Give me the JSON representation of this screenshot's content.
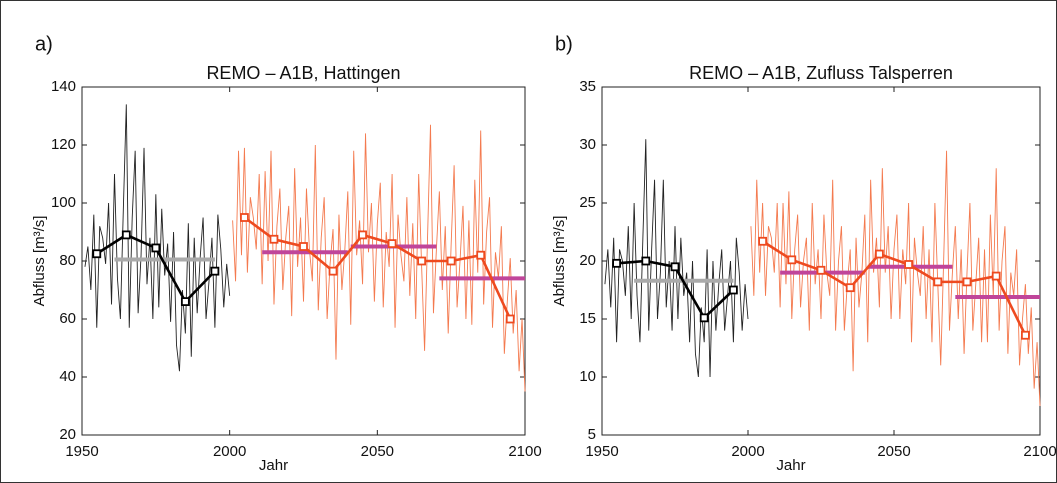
{
  "chart_data": [
    {
      "type": "line",
      "panel_label": "a)",
      "title": "REMO – A1B, Hattingen",
      "xlabel": "Jahr",
      "ylabel": "Abfluss [m³/s]",
      "xlim": [
        1950,
        2100
      ],
      "xticks": [
        1950,
        2000,
        2050,
        2100
      ],
      "ylim": [
        20,
        140
      ],
      "yticks": [
        20,
        40,
        60,
        80,
        100,
        120,
        140
      ],
      "annual": [
        {
          "color": "#222222",
          "x": [
            1951,
            1952,
            1953,
            1954,
            1955,
            1956,
            1957,
            1958,
            1959,
            1960,
            1961,
            1962,
            1963,
            1964,
            1965,
            1966,
            1967,
            1968,
            1969,
            1970,
            1971,
            1972,
            1973,
            1974,
            1975,
            1976,
            1977,
            1978,
            1979,
            1980,
            1981,
            1982,
            1983,
            1984,
            1985,
            1986,
            1987,
            1988,
            1989,
            1990,
            1991,
            1992,
            1993,
            1994,
            1995,
            1996,
            1997,
            1998,
            1999,
            2000
          ],
          "values": [
            78,
            85,
            70,
            96,
            57,
            92,
            88,
            79,
            100,
            65,
            110,
            74,
            60,
            98,
            134,
            57,
            95,
            118,
            62,
            82,
            119,
            72,
            88,
            60,
            103,
            64,
            98,
            75,
            86,
            59,
            90,
            51,
            42,
            70,
            55,
            93,
            47,
            88,
            62,
            81,
            95,
            60,
            73,
            88,
            57,
            96,
            84,
            64,
            79,
            68
          ]
        },
        {
          "color": "#f47a4f",
          "x": [
            2001,
            2002,
            2003,
            2004,
            2005,
            2006,
            2007,
            2008,
            2009,
            2010,
            2011,
            2012,
            2013,
            2014,
            2015,
            2016,
            2017,
            2018,
            2019,
            2020,
            2021,
            2022,
            2023,
            2024,
            2025,
            2026,
            2027,
            2028,
            2029,
            2030,
            2031,
            2032,
            2033,
            2034,
            2035,
            2036,
            2037,
            2038,
            2039,
            2040,
            2041,
            2042,
            2043,
            2044,
            2045,
            2046,
            2047,
            2048,
            2049,
            2050,
            2051,
            2052,
            2053,
            2054,
            2055,
            2056,
            2057,
            2058,
            2059,
            2060,
            2061,
            2062,
            2063,
            2064,
            2065,
            2066,
            2067,
            2068,
            2069,
            2070,
            2071,
            2072,
            2073,
            2074,
            2075,
            2076,
            2077,
            2078,
            2079,
            2080,
            2081,
            2082,
            2083,
            2084,
            2085,
            2086,
            2087,
            2088,
            2089,
            2090,
            2091,
            2092,
            2093,
            2094,
            2095,
            2096,
            2097,
            2098,
            2099,
            2100
          ],
          "values": [
            94,
            73,
            118,
            82,
            119,
            76,
            102,
            95,
            84,
            110,
            72,
            111,
            80,
            118,
            65,
            92,
            105,
            70,
            88,
            99,
            61,
            112,
            78,
            95,
            66,
            105,
            84,
            73,
            120,
            63,
            88,
            102,
            60,
            79,
            91,
            46,
            96,
            70,
            84,
            104,
            58,
            118,
            82,
            94,
            72,
            124,
            83,
            100,
            66,
            93,
            107,
            64,
            90,
            78,
            110,
            57,
            96,
            82,
            73,
            102,
            68,
            93,
            60,
            110,
            78,
            49,
            88,
            127,
            62,
            84,
            104,
            70,
            92,
            55,
            86,
            113,
            64,
            80,
            99,
            60,
            94,
            58,
            108,
            76,
            125,
            65,
            90,
            102,
            57,
            83,
            74,
            92,
            48,
            66,
            81,
            55,
            70,
            42,
            60,
            35
          ]
        }
      ],
      "decadal": [
        {
          "color": "#000000",
          "x": [
            1955,
            1965,
            1975,
            1985,
            1995
          ],
          "values": [
            82.5,
            89,
            84.5,
            66,
            76.5
          ]
        },
        {
          "color": "#ee4a1f",
          "x": [
            2005,
            2015,
            2025,
            2035,
            2045,
            2055,
            2065,
            2075,
            2085,
            2095
          ],
          "values": [
            95,
            87.5,
            85,
            76.5,
            89,
            86,
            80,
            80,
            82,
            60
          ]
        }
      ],
      "periods": [
        {
          "color": "#aaaaaa",
          "x": [
            1961,
            1995
          ],
          "value": 80.5
        },
        {
          "color": "#c0459a",
          "x": [
            2011,
            2040
          ],
          "value": 83
        },
        {
          "color": "#c0459a",
          "x": [
            2041,
            2070
          ],
          "value": 85
        },
        {
          "color": "#c0459a",
          "x": [
            2071,
            2100
          ],
          "value": 74
        }
      ]
    },
    {
      "type": "line",
      "panel_label": "b)",
      "title": "REMO – A1B, Zufluss Talsperren",
      "xlabel": "Jahr",
      "ylabel": "Abfluss [m³/s]",
      "xlim": [
        1950,
        2100
      ],
      "xticks": [
        1950,
        2000,
        2050,
        2100
      ],
      "ylim": [
        5,
        35
      ],
      "yticks": [
        5,
        10,
        15,
        20,
        25,
        30,
        35
      ],
      "annual": [
        {
          "color": "#222222",
          "x": [
            1951,
            1952,
            1953,
            1954,
            1955,
            1956,
            1957,
            1958,
            1959,
            1960,
            1961,
            1962,
            1963,
            1964,
            1965,
            1966,
            1967,
            1968,
            1969,
            1970,
            1971,
            1972,
            1973,
            1974,
            1975,
            1976,
            1977,
            1978,
            1979,
            1980,
            1981,
            1982,
            1983,
            1984,
            1985,
            1986,
            1987,
            1988,
            1989,
            1990,
            1991,
            1992,
            1993,
            1994,
            1995,
            1996,
            1997,
            1998,
            1999,
            2000
          ],
          "values": [
            18,
            21,
            16,
            22,
            13,
            21,
            20,
            17,
            23,
            15,
            25,
            17,
            13,
            22,
            30.5,
            14,
            21,
            27,
            15,
            19,
            27,
            16,
            20,
            14,
            23,
            15,
            22,
            17,
            19,
            13,
            20,
            12,
            10,
            16,
            13,
            21,
            10,
            20,
            14,
            18,
            21,
            14,
            17,
            20,
            13,
            22,
            19,
            14,
            18,
            15
          ]
        },
        {
          "color": "#f47a4f",
          "x": [
            2001,
            2002,
            2003,
            2004,
            2005,
            2006,
            2007,
            2008,
            2009,
            2010,
            2011,
            2012,
            2013,
            2014,
            2015,
            2016,
            2017,
            2018,
            2019,
            2020,
            2021,
            2022,
            2023,
            2024,
            2025,
            2026,
            2027,
            2028,
            2029,
            2030,
            2031,
            2032,
            2033,
            2034,
            2035,
            2036,
            2037,
            2038,
            2039,
            2040,
            2041,
            2042,
            2043,
            2044,
            2045,
            2046,
            2047,
            2048,
            2049,
            2050,
            2051,
            2052,
            2053,
            2054,
            2055,
            2056,
            2057,
            2058,
            2059,
            2060,
            2061,
            2062,
            2063,
            2064,
            2065,
            2066,
            2067,
            2068,
            2069,
            2070,
            2071,
            2072,
            2073,
            2074,
            2075,
            2076,
            2077,
            2078,
            2079,
            2080,
            2081,
            2082,
            2083,
            2084,
            2085,
            2086,
            2087,
            2088,
            2089,
            2090,
            2091,
            2092,
            2093,
            2094,
            2095,
            2096,
            2097,
            2098,
            2099,
            2100
          ],
          "values": [
            23,
            17,
            27,
            19,
            25,
            17,
            23,
            22,
            19,
            25,
            16,
            25,
            18,
            26,
            15,
            21,
            24,
            16,
            20,
            22,
            14,
            25,
            18,
            21,
            15,
            24,
            19,
            17,
            27,
            14,
            20,
            23,
            14,
            18,
            21,
            10.5,
            22,
            16,
            19,
            24,
            13,
            27,
            19,
            22,
            16,
            28,
            19,
            23,
            15,
            21,
            24,
            15,
            21,
            18,
            25,
            13,
            22,
            19,
            17,
            23,
            15,
            21,
            13,
            25,
            18,
            11,
            20,
            29.5,
            14,
            19,
            23,
            15,
            21,
            12,
            19,
            25,
            14,
            18,
            22,
            13,
            21,
            13,
            24,
            17,
            28,
            14,
            20,
            23,
            12,
            19,
            17,
            21,
            11,
            15,
            18,
            12,
            16,
            9,
            13,
            7.5
          ]
        }
      ],
      "decadal": [
        {
          "color": "#000000",
          "x": [
            1955,
            1965,
            1975,
            1985,
            1995
          ],
          "values": [
            19.8,
            20,
            19.5,
            15.1,
            17.5
          ]
        },
        {
          "color": "#ee4a1f",
          "x": [
            2005,
            2015,
            2025,
            2035,
            2045,
            2055,
            2065,
            2075,
            2085,
            2095
          ],
          "values": [
            21.7,
            20.1,
            19.2,
            17.7,
            20.6,
            19.7,
            18.2,
            18.2,
            18.7,
            13.6
          ]
        }
      ],
      "periods": [
        {
          "color": "#aaaaaa",
          "x": [
            1961,
            1995
          ],
          "value": 18.3
        },
        {
          "color": "#c0459a",
          "x": [
            2011,
            2040
          ],
          "value": 19
        },
        {
          "color": "#c0459a",
          "x": [
            2041,
            2070
          ],
          "value": 19.5
        },
        {
          "color": "#c0459a",
          "x": [
            2071,
            2100
          ],
          "value": 16.9
        }
      ]
    }
  ]
}
